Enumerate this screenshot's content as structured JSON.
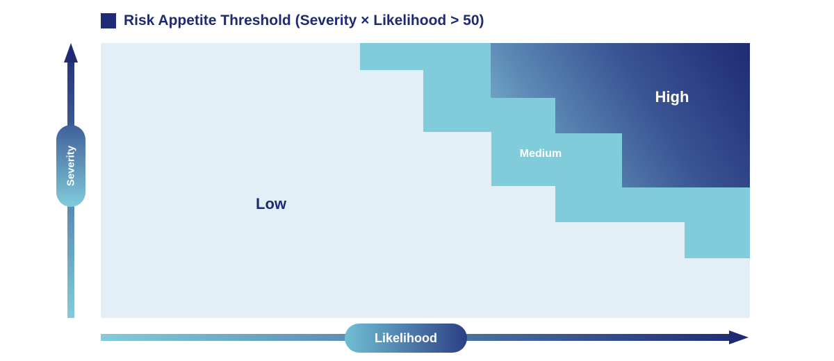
{
  "legend": {
    "label": "Risk Appetite Threshold (Severity × Likelihood > 50)"
  },
  "axes": {
    "x_label": "Likelihood",
    "y_label": "Severity"
  },
  "zones": {
    "low": "Low",
    "medium": "Medium",
    "high": "High"
  },
  "colors": {
    "navy": "#1e2a73",
    "teal": "#81ccdb",
    "low_background": "#e3eff7",
    "medium": "#81ccdb",
    "high_start": "#6fa4c4",
    "high_end": "#1e2a73"
  }
}
